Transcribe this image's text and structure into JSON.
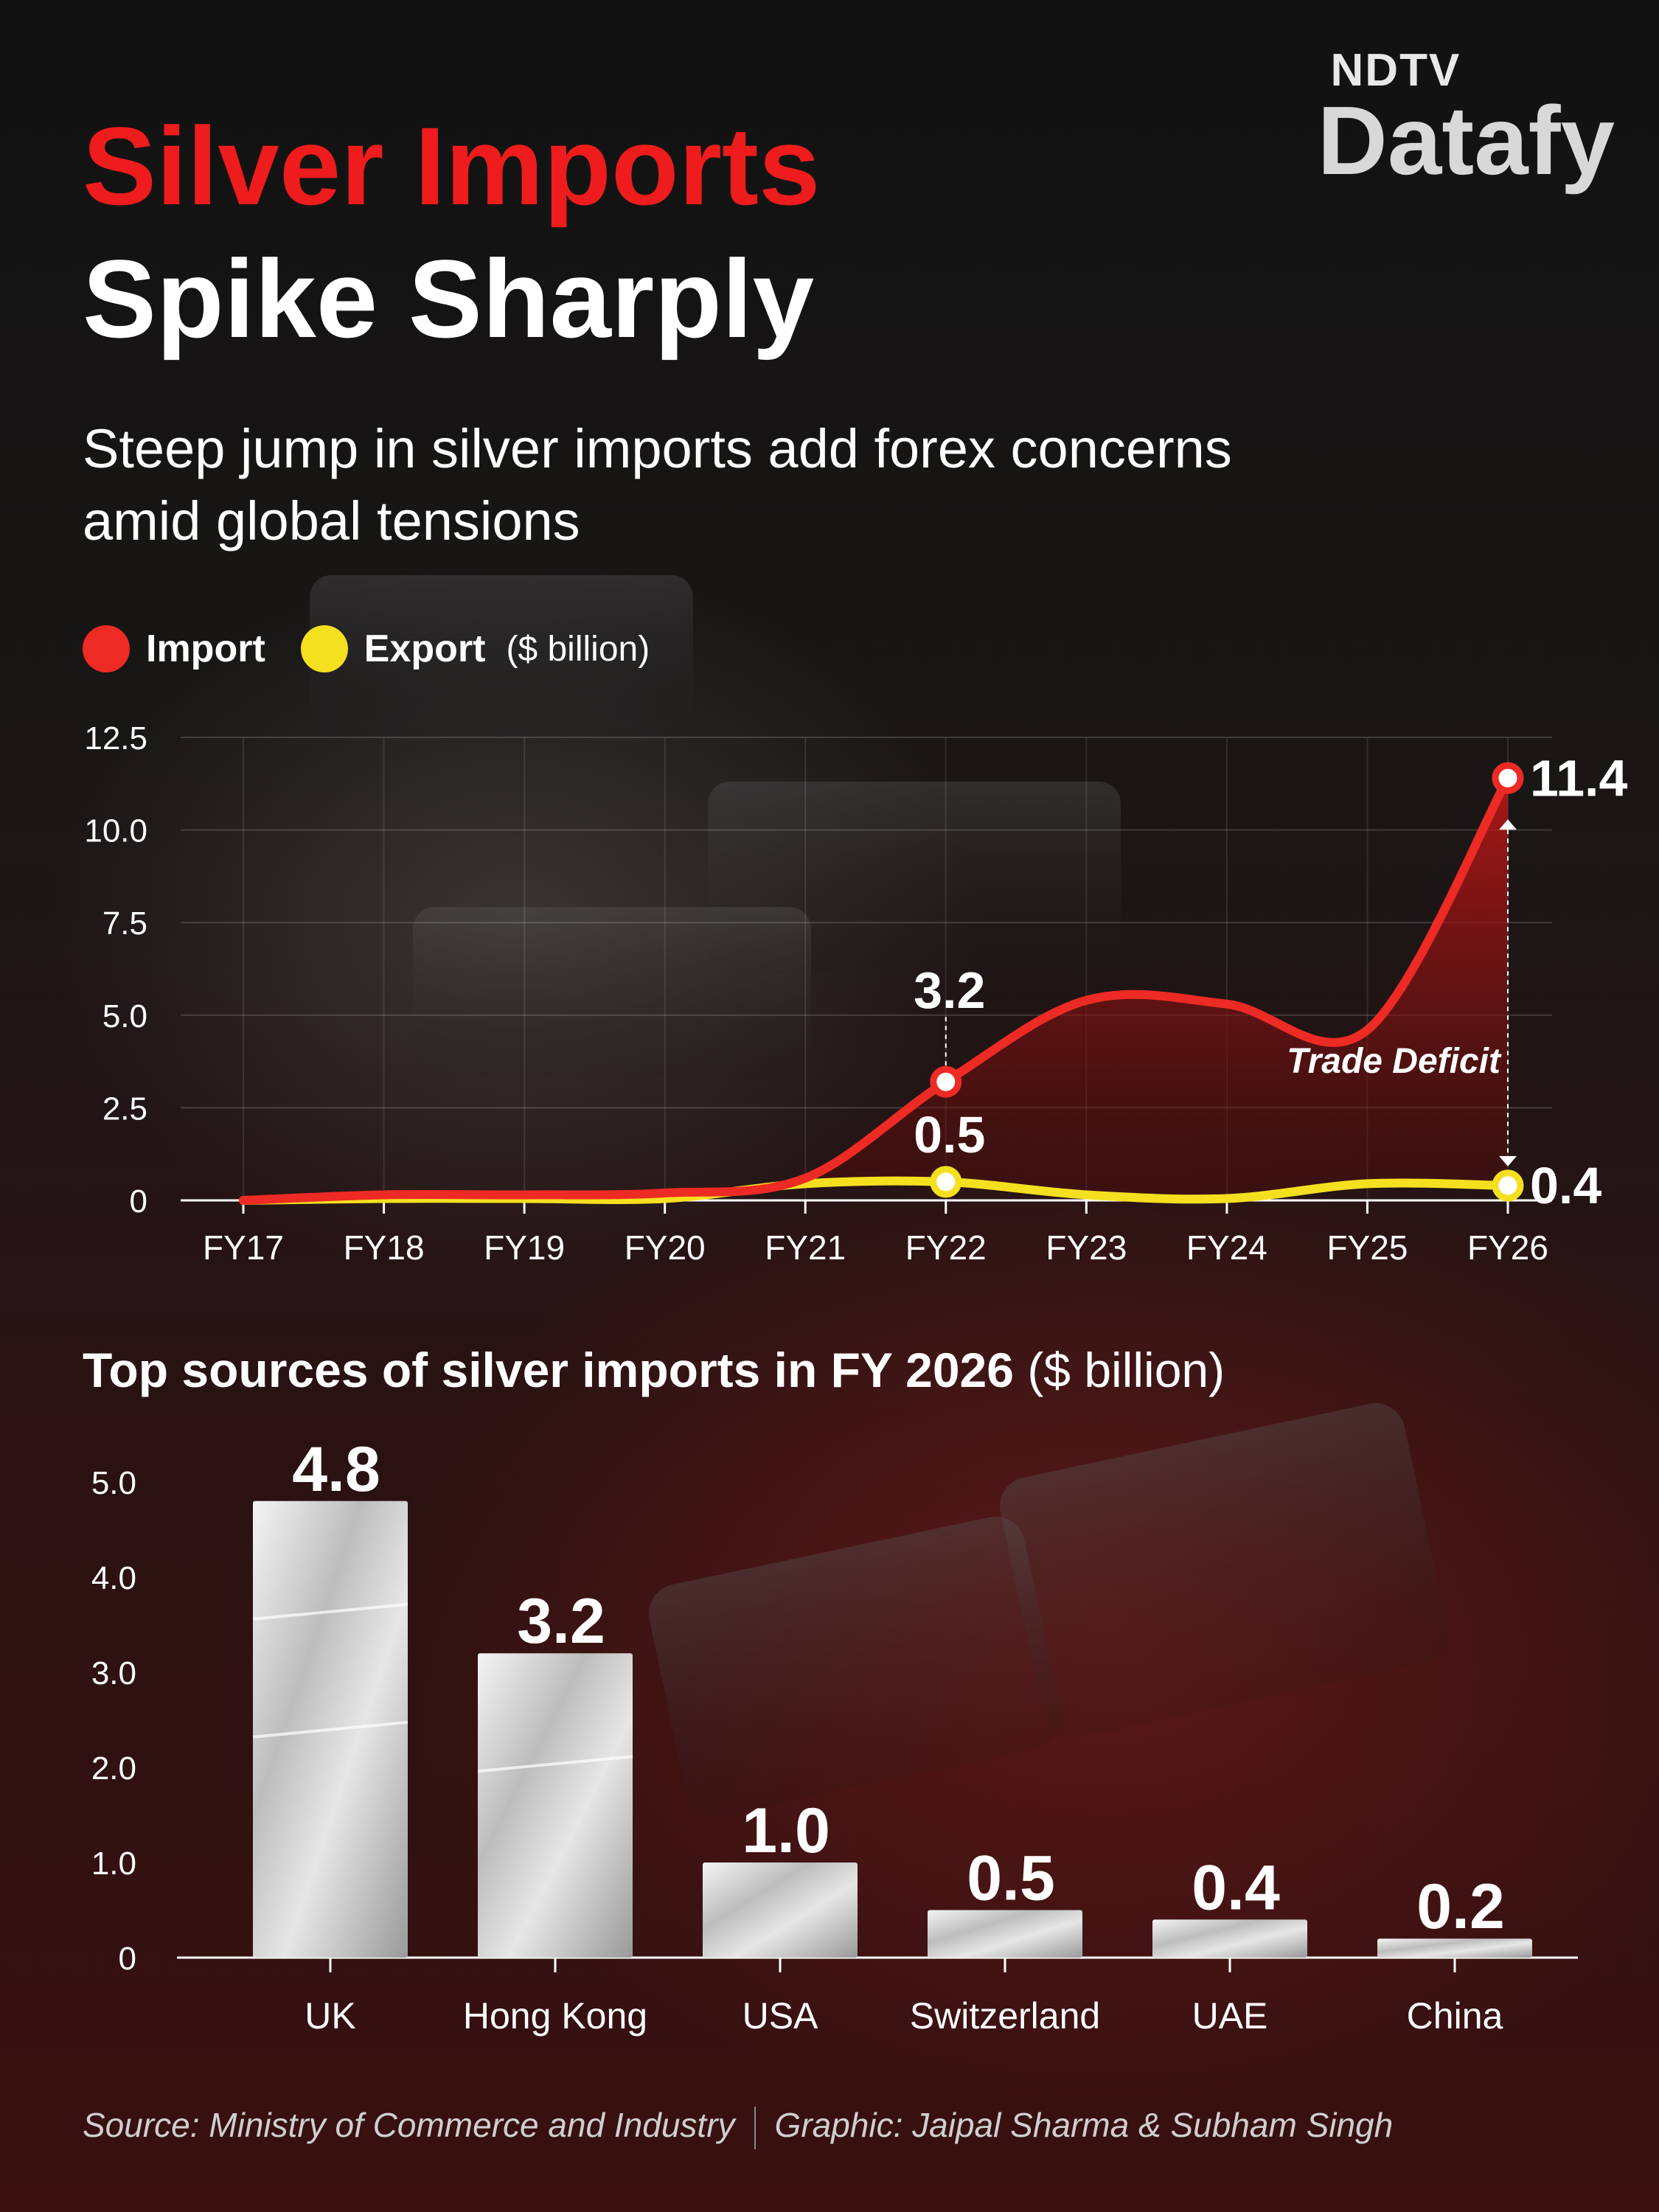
{
  "brand": {
    "top": "NDTV",
    "bottom": "Datafy"
  },
  "title": {
    "line1": "Silver Imports",
    "line2": "Spike Sharply"
  },
  "subtitle": "Steep jump in silver imports add forex concerns amid global tensions",
  "colors": {
    "import": "#ee2a24",
    "export": "#f5e020",
    "title_red": "#ee1c1c"
  },
  "chart_data": [
    {
      "type": "line",
      "title": "",
      "unit": "($ billion)",
      "x": [
        "FY17",
        "FY18",
        "FY19",
        "FY20",
        "FY21",
        "FY22",
        "FY23",
        "FY24",
        "FY25",
        "FY26"
      ],
      "series": [
        {
          "name": "Import",
          "values": [
            0.0,
            0.15,
            0.15,
            0.2,
            0.6,
            3.2,
            5.4,
            5.3,
            4.6,
            11.4
          ]
        },
        {
          "name": "Export",
          "values": [
            0.0,
            0.05,
            0.05,
            0.05,
            0.45,
            0.5,
            0.15,
            0.05,
            0.45,
            0.4
          ]
        }
      ],
      "labels": [
        {
          "text": "3.2",
          "series": "Import",
          "x": "FY22"
        },
        {
          "text": "0.5",
          "series": "Export",
          "x": "FY22"
        },
        {
          "text": "11.4",
          "series": "Import",
          "x": "FY26"
        },
        {
          "text": "0.4",
          "series": "Export",
          "x": "FY26"
        }
      ],
      "annotation": "Trade Deficit",
      "y_ticks": [
        "0",
        "2.5",
        "5.0",
        "7.5",
        "10.0",
        "12.5"
      ],
      "ylim": [
        0,
        12.5
      ],
      "grid": true,
      "legend": "top-left"
    },
    {
      "type": "bar",
      "title": "Top sources of silver imports in FY 2026",
      "title_unit": "($ billion)",
      "categories": [
        "UK",
        "Hong Kong",
        "USA",
        "Switzerland",
        "UAE",
        "China"
      ],
      "values": [
        4.8,
        3.2,
        1.0,
        0.5,
        0.4,
        0.2
      ],
      "value_labels": [
        "4.8",
        "3.2",
        "1.0",
        "0.5",
        "0.4",
        "0.2"
      ],
      "y_ticks": [
        "0",
        "1.0",
        "2.0",
        "3.0",
        "4.0",
        "5.0"
      ],
      "ylim": [
        0,
        5.0
      ],
      "grid": false
    }
  ],
  "source": {
    "text": "Source: Ministry of Commerce and Industry",
    "credit": "Graphic: Jaipal Sharma & Subham Singh"
  }
}
